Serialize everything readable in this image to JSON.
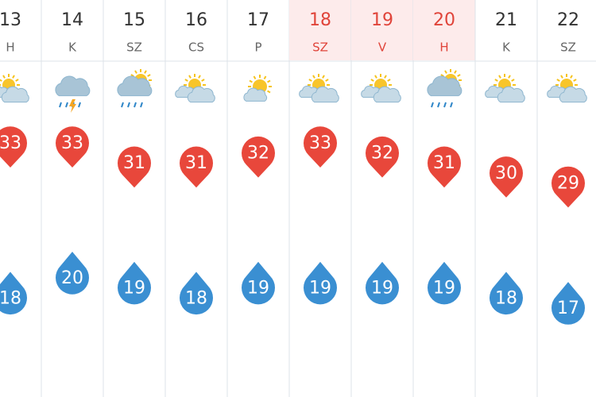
{
  "days": [
    {
      "day": "13",
      "weekday": "H",
      "max": 33,
      "min": 18,
      "weekend": false
    },
    {
      "day": "14",
      "weekday": "K",
      "max": 33,
      "min": 20,
      "weekend": false
    },
    {
      "day": "15",
      "weekday": "SZ",
      "max": 31,
      "min": 19,
      "weekend": false
    },
    {
      "day": "16",
      "weekday": "CS",
      "max": 31,
      "min": 18,
      "weekend": false
    },
    {
      "day": "17",
      "weekday": "P",
      "max": 32,
      "min": 19,
      "weekend": false
    },
    {
      "day": "18",
      "weekday": "SZ",
      "max": 33,
      "min": 19,
      "weekend": true
    },
    {
      "day": "19",
      "weekday": "V",
      "max": 32,
      "min": 19,
      "weekend": true
    },
    {
      "day": "20",
      "weekday": "H",
      "max": 31,
      "min": 19,
      "weekend": true
    },
    {
      "day": "21",
      "weekday": "K",
      "max": 30,
      "min": 18,
      "weekend": false
    },
    {
      "day": "22",
      "weekday": "SZ",
      "max": 29,
      "min": 17,
      "weekend": false
    }
  ]
}
